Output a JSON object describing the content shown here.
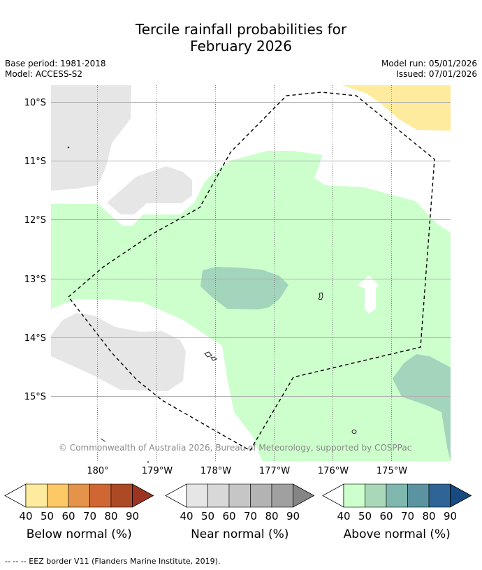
{
  "title": {
    "line1": "Tercile rainfall probabilities for",
    "line2": "February 2026"
  },
  "meta": {
    "base_period": "Base period: 1981-2018",
    "model": "Model: ACCESS-S2",
    "model_run": "Model run: 05/01/2026",
    "issued": "Issued: 07/01/2026"
  },
  "map": {
    "lat_labels": [
      "10°S",
      "11°S",
      "12°S",
      "13°S",
      "14°S",
      "15°S"
    ],
    "lon_labels": [
      "180°",
      "179°W",
      "178°W",
      "177°W",
      "176°W",
      "175°W"
    ],
    "copyright": "© Commonwealth of Australia 2026, Bureau of Meteorology, supported by COSPPac",
    "colors": {
      "above_40_50": "#ccffcc",
      "above_50_60": "#a3d4bc",
      "near_40_50": "#e6e6e6",
      "below_40_50": "#ffeb9e",
      "eez_border": "#000000"
    }
  },
  "colorbars": [
    {
      "title": "Below normal (%)",
      "ticks": [
        "40",
        "50",
        "60",
        "70",
        "80",
        "90"
      ],
      "colors": [
        "#ffeb9e",
        "#fdc966",
        "#e5924a",
        "#cf6634",
        "#ad4a26",
        "#9b3522"
      ]
    },
    {
      "title": "Near normal (%)",
      "ticks": [
        "40",
        "50",
        "60",
        "70",
        "80",
        "90"
      ],
      "colors": [
        "#e6e6e6",
        "#d8d8d8",
        "#c6c6c6",
        "#b3b3b3",
        "#a0a0a0",
        "#858585"
      ]
    },
    {
      "title": "Above normal (%)",
      "ticks": [
        "40",
        "50",
        "60",
        "70",
        "80",
        "90"
      ],
      "colors": [
        "#ccffcc",
        "#a8d8b8",
        "#80b8b0",
        "#5b94a0",
        "#2f6496",
        "#164a80"
      ]
    }
  ],
  "footer": "--  --  -- EEZ border V11 (Flanders Marine Institute, 2019)."
}
